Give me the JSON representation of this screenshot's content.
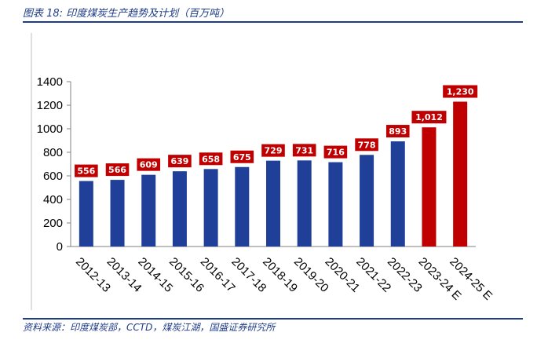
{
  "header": {
    "title": "图表 18:  印度煤炭生产趋势及计划（百万吨）"
  },
  "footer": {
    "source": "资料来源：印度煤炭部，CCTD，煤炭江湖，国盛证券研究所"
  },
  "colors": {
    "actual": "#1f3f99",
    "plan": "#c00000",
    "label_bg": "#c00000",
    "rule": "#1f3c88"
  },
  "chart_data": {
    "type": "bar",
    "title": "印度煤炭生产趋势及计划（百万吨）",
    "xlabel": "",
    "ylabel": "",
    "ylim": [
      0,
      1400
    ],
    "yticks": [
      0,
      200,
      400,
      600,
      800,
      1000,
      1200,
      1400
    ],
    "grid": false,
    "categories": [
      "2012-13",
      "2013-14",
      "2014-15",
      "2015-16",
      "2016-17",
      "2017-18",
      "2018-19",
      "2019-20",
      "2020-21",
      "2021-22",
      "2022-23",
      "2023-24 E",
      "2024-25 E"
    ],
    "values": [
      556,
      566,
      609,
      639,
      658,
      675,
      729,
      731,
      716,
      778,
      893,
      1012,
      1230
    ],
    "data_labels": [
      "556",
      "566",
      "609",
      "639",
      "658",
      "675",
      "729",
      "731",
      "716",
      "778",
      "893",
      "1,012",
      "1,230"
    ],
    "bar_colors": [
      "#1f3f99",
      "#1f3f99",
      "#1f3f99",
      "#1f3f99",
      "#1f3f99",
      "#1f3f99",
      "#1f3f99",
      "#1f3f99",
      "#1f3f99",
      "#1f3f99",
      "#1f3f99",
      "#c00000",
      "#c00000"
    ]
  }
}
